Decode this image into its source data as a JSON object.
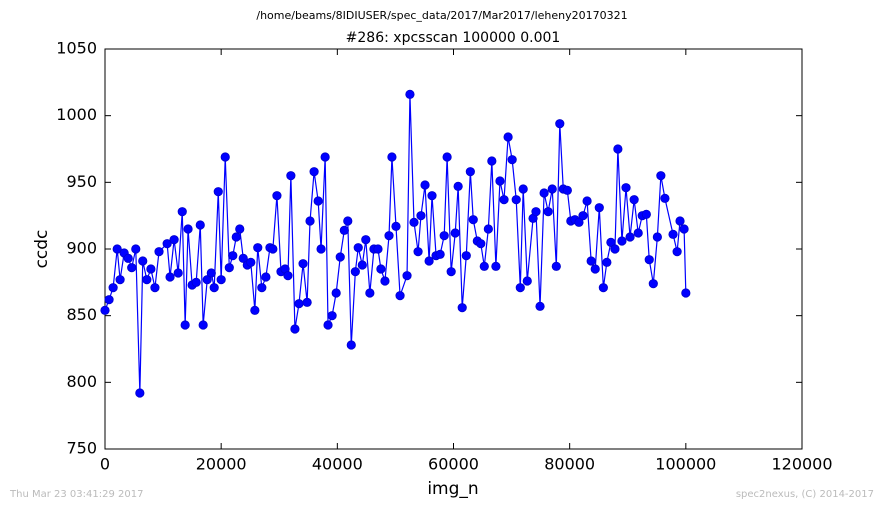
{
  "chart_data": {
    "type": "line",
    "supertitle": "/home/beams/8IDIUSER/spec_data/2017/Mar2017/leheny20170321",
    "title": "#286: xpcsscan 100000 0.001",
    "x_label": "img_n",
    "y_label": "ccdc",
    "footer_left": "Thu Mar 23 03:41:29 2017",
    "footer_right": "spec2nexus, (C) 2014-2017",
    "xlim": [
      0,
      120000
    ],
    "ylim": [
      750,
      1050
    ],
    "xticks": [
      0,
      20000,
      40000,
      60000,
      80000,
      100000,
      120000
    ],
    "yticks": [
      750,
      800,
      850,
      900,
      950,
      1000,
      1050
    ],
    "grid": false,
    "x": [
      0,
      700,
      1400,
      2100,
      2600,
      3300,
      4000,
      4600,
      5300,
      6000,
      6500,
      7200,
      7900,
      8600,
      9300,
      10700,
      11200,
      11900,
      12600,
      13300,
      13800,
      14300,
      15000,
      15700,
      16400,
      16900,
      17600,
      18300,
      18800,
      19500,
      20000,
      20700,
      21400,
      22000,
      22600,
      23200,
      23800,
      24500,
      25100,
      25800,
      26300,
      27000,
      27700,
      28400,
      28900,
      29600,
      30300,
      31000,
      31500,
      32000,
      32700,
      33400,
      34100,
      34800,
      35300,
      36000,
      36700,
      37200,
      37900,
      38400,
      39100,
      39800,
      40500,
      41200,
      41800,
      42400,
      43100,
      43600,
      44300,
      44900,
      45600,
      46300,
      47000,
      47500,
      48200,
      48900,
      49400,
      50100,
      50800,
      52000,
      52500,
      53200,
      53900,
      54400,
      55100,
      55800,
      56300,
      57000,
      57700,
      58400,
      58900,
      59600,
      60300,
      60800,
      61500,
      62200,
      62900,
      63400,
      64100,
      64700,
      65300,
      66000,
      66600,
      67300,
      68000,
      68700,
      69400,
      70100,
      70800,
      71500,
      72000,
      72700,
      73700,
      74200,
      74900,
      75600,
      76300,
      77000,
      77700,
      78300,
      78900,
      79600,
      80200,
      80900,
      81600,
      82300,
      83000,
      83700,
      84400,
      85100,
      85800,
      86400,
      87100,
      87800,
      88300,
      89000,
      89700,
      90400,
      91100,
      91800,
      92500,
      93200,
      93700,
      94400,
      95100,
      95700,
      96400,
      97800,
      98500,
      99000,
      99700,
      100000
    ],
    "series": [
      {
        "name": "ccdc",
        "color": "#0000ff",
        "marker_color": "#0000cc",
        "values": [
          854,
          862,
          871,
          900,
          877,
          897,
          893,
          886,
          900,
          792,
          891,
          877,
          885,
          871,
          898,
          904,
          879,
          907,
          882,
          928,
          843,
          915,
          873,
          875,
          918,
          843,
          877,
          882,
          871,
          943,
          877,
          969,
          886,
          895,
          909,
          915,
          893,
          888,
          890,
          854,
          901,
          871,
          879,
          901,
          900,
          940,
          883,
          885,
          880,
          955,
          840,
          859,
          889,
          860,
          921,
          958,
          936,
          900,
          969,
          843,
          850,
          867,
          894,
          914,
          921,
          828,
          883,
          901,
          888,
          907,
          867,
          900,
          900,
          885,
          876,
          910,
          969,
          917,
          865,
          880,
          1016,
          920,
          898,
          925,
          948,
          891,
          940,
          895,
          896,
          910,
          969,
          883,
          912,
          947,
          856,
          895,
          958,
          922,
          906,
          904,
          887,
          915,
          966,
          887,
          951,
          937,
          984,
          967,
          937,
          871,
          945,
          876,
          923,
          928,
          857,
          942,
          928,
          945,
          887,
          994,
          945,
          944,
          921,
          922,
          920,
          925,
          936,
          891,
          885,
          931,
          871,
          890,
          905,
          900,
          975,
          906,
          946,
          909,
          937,
          912,
          925,
          926,
          892,
          874,
          909,
          955,
          938,
          911,
          898,
          921,
          915,
          867
        ]
      }
    ]
  }
}
